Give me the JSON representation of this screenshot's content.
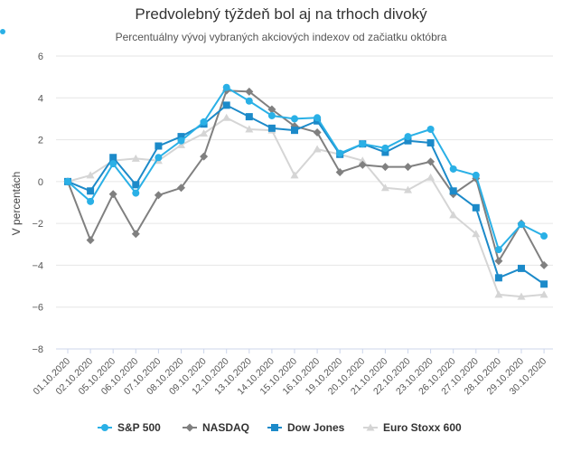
{
  "chart_data": {
    "type": "line",
    "title": "Predvolebný týždeň bol aj na trhoch divoký",
    "subtitle": "Percentuálny vývoj vybraných akciových indexov od začiatku októbra",
    "xlabel": "",
    "ylabel": "V percentách",
    "ylim": [
      -8,
      6
    ],
    "yticks": [
      6,
      4,
      2,
      0,
      -2,
      -4,
      -6,
      -8
    ],
    "ytick_labels": [
      "6",
      "4",
      "2",
      "0",
      "−2",
      "−4",
      "−6",
      "−8"
    ],
    "grid": true,
    "legend_position": "bottom",
    "categories": [
      "01.10.2020",
      "02.10.2020",
      "05.10.2020",
      "06.10.2020",
      "07.10.2020",
      "08.10.2020",
      "09.10.2020",
      "12.10.2020",
      "13.10.2020",
      "14.10.2020",
      "15.10.2020",
      "16.10.2020",
      "19.10.2020",
      "20.10.2020",
      "21.10.2020",
      "22.10.2020",
      "23.10.2020",
      "26.10.2020",
      "27.10.2020",
      "28.10.2020",
      "29.10.2020",
      "30.10.2020"
    ],
    "series": [
      {
        "name": "S&P 500",
        "color": "#2ab0e6",
        "marker": "circle",
        "values": [
          0.0,
          -0.95,
          0.85,
          -0.55,
          1.15,
          1.95,
          2.85,
          4.5,
          3.85,
          3.15,
          3.0,
          3.05,
          1.35,
          1.8,
          1.6,
          2.15,
          2.5,
          0.6,
          0.3,
          -3.25,
          -2.05,
          -2.6
        ]
      },
      {
        "name": "NASDAQ",
        "color": "#808080",
        "marker": "diamond",
        "values": [
          0.0,
          -2.8,
          -0.6,
          -2.5,
          -0.65,
          -0.3,
          1.2,
          4.35,
          4.3,
          3.45,
          2.65,
          2.35,
          0.45,
          0.8,
          0.7,
          0.7,
          0.95,
          -0.6,
          0.15,
          -3.8,
          -2.0,
          -4.0
        ]
      },
      {
        "name": "Dow Jones",
        "color": "#1c8ac9",
        "marker": "square",
        "values": [
          0.0,
          -0.45,
          1.15,
          -0.15,
          1.7,
          2.15,
          2.75,
          3.65,
          3.1,
          2.55,
          2.45,
          2.9,
          1.3,
          1.8,
          1.4,
          1.95,
          1.85,
          -0.45,
          -1.25,
          -4.6,
          -4.15,
          -4.9
        ]
      },
      {
        "name": "Euro Stoxx 600",
        "color": "#d5d5d5",
        "marker": "triangle",
        "values": [
          0.0,
          0.3,
          1.0,
          1.1,
          1.0,
          1.75,
          2.3,
          3.05,
          2.5,
          2.45,
          0.3,
          1.55,
          1.3,
          1.0,
          -0.3,
          -0.4,
          0.2,
          -1.6,
          -2.5,
          -5.4,
          -5.5,
          -5.4
        ]
      }
    ]
  },
  "colors": {
    "grid": "#e6e6e6",
    "axis": "#ccd6eb",
    "sp500": "#2ab0e6",
    "nasdaq": "#808080",
    "dowjones": "#1c8ac9",
    "eurostoxx": "#d5d5d5",
    "corner_dot": "#2ab0e6"
  }
}
